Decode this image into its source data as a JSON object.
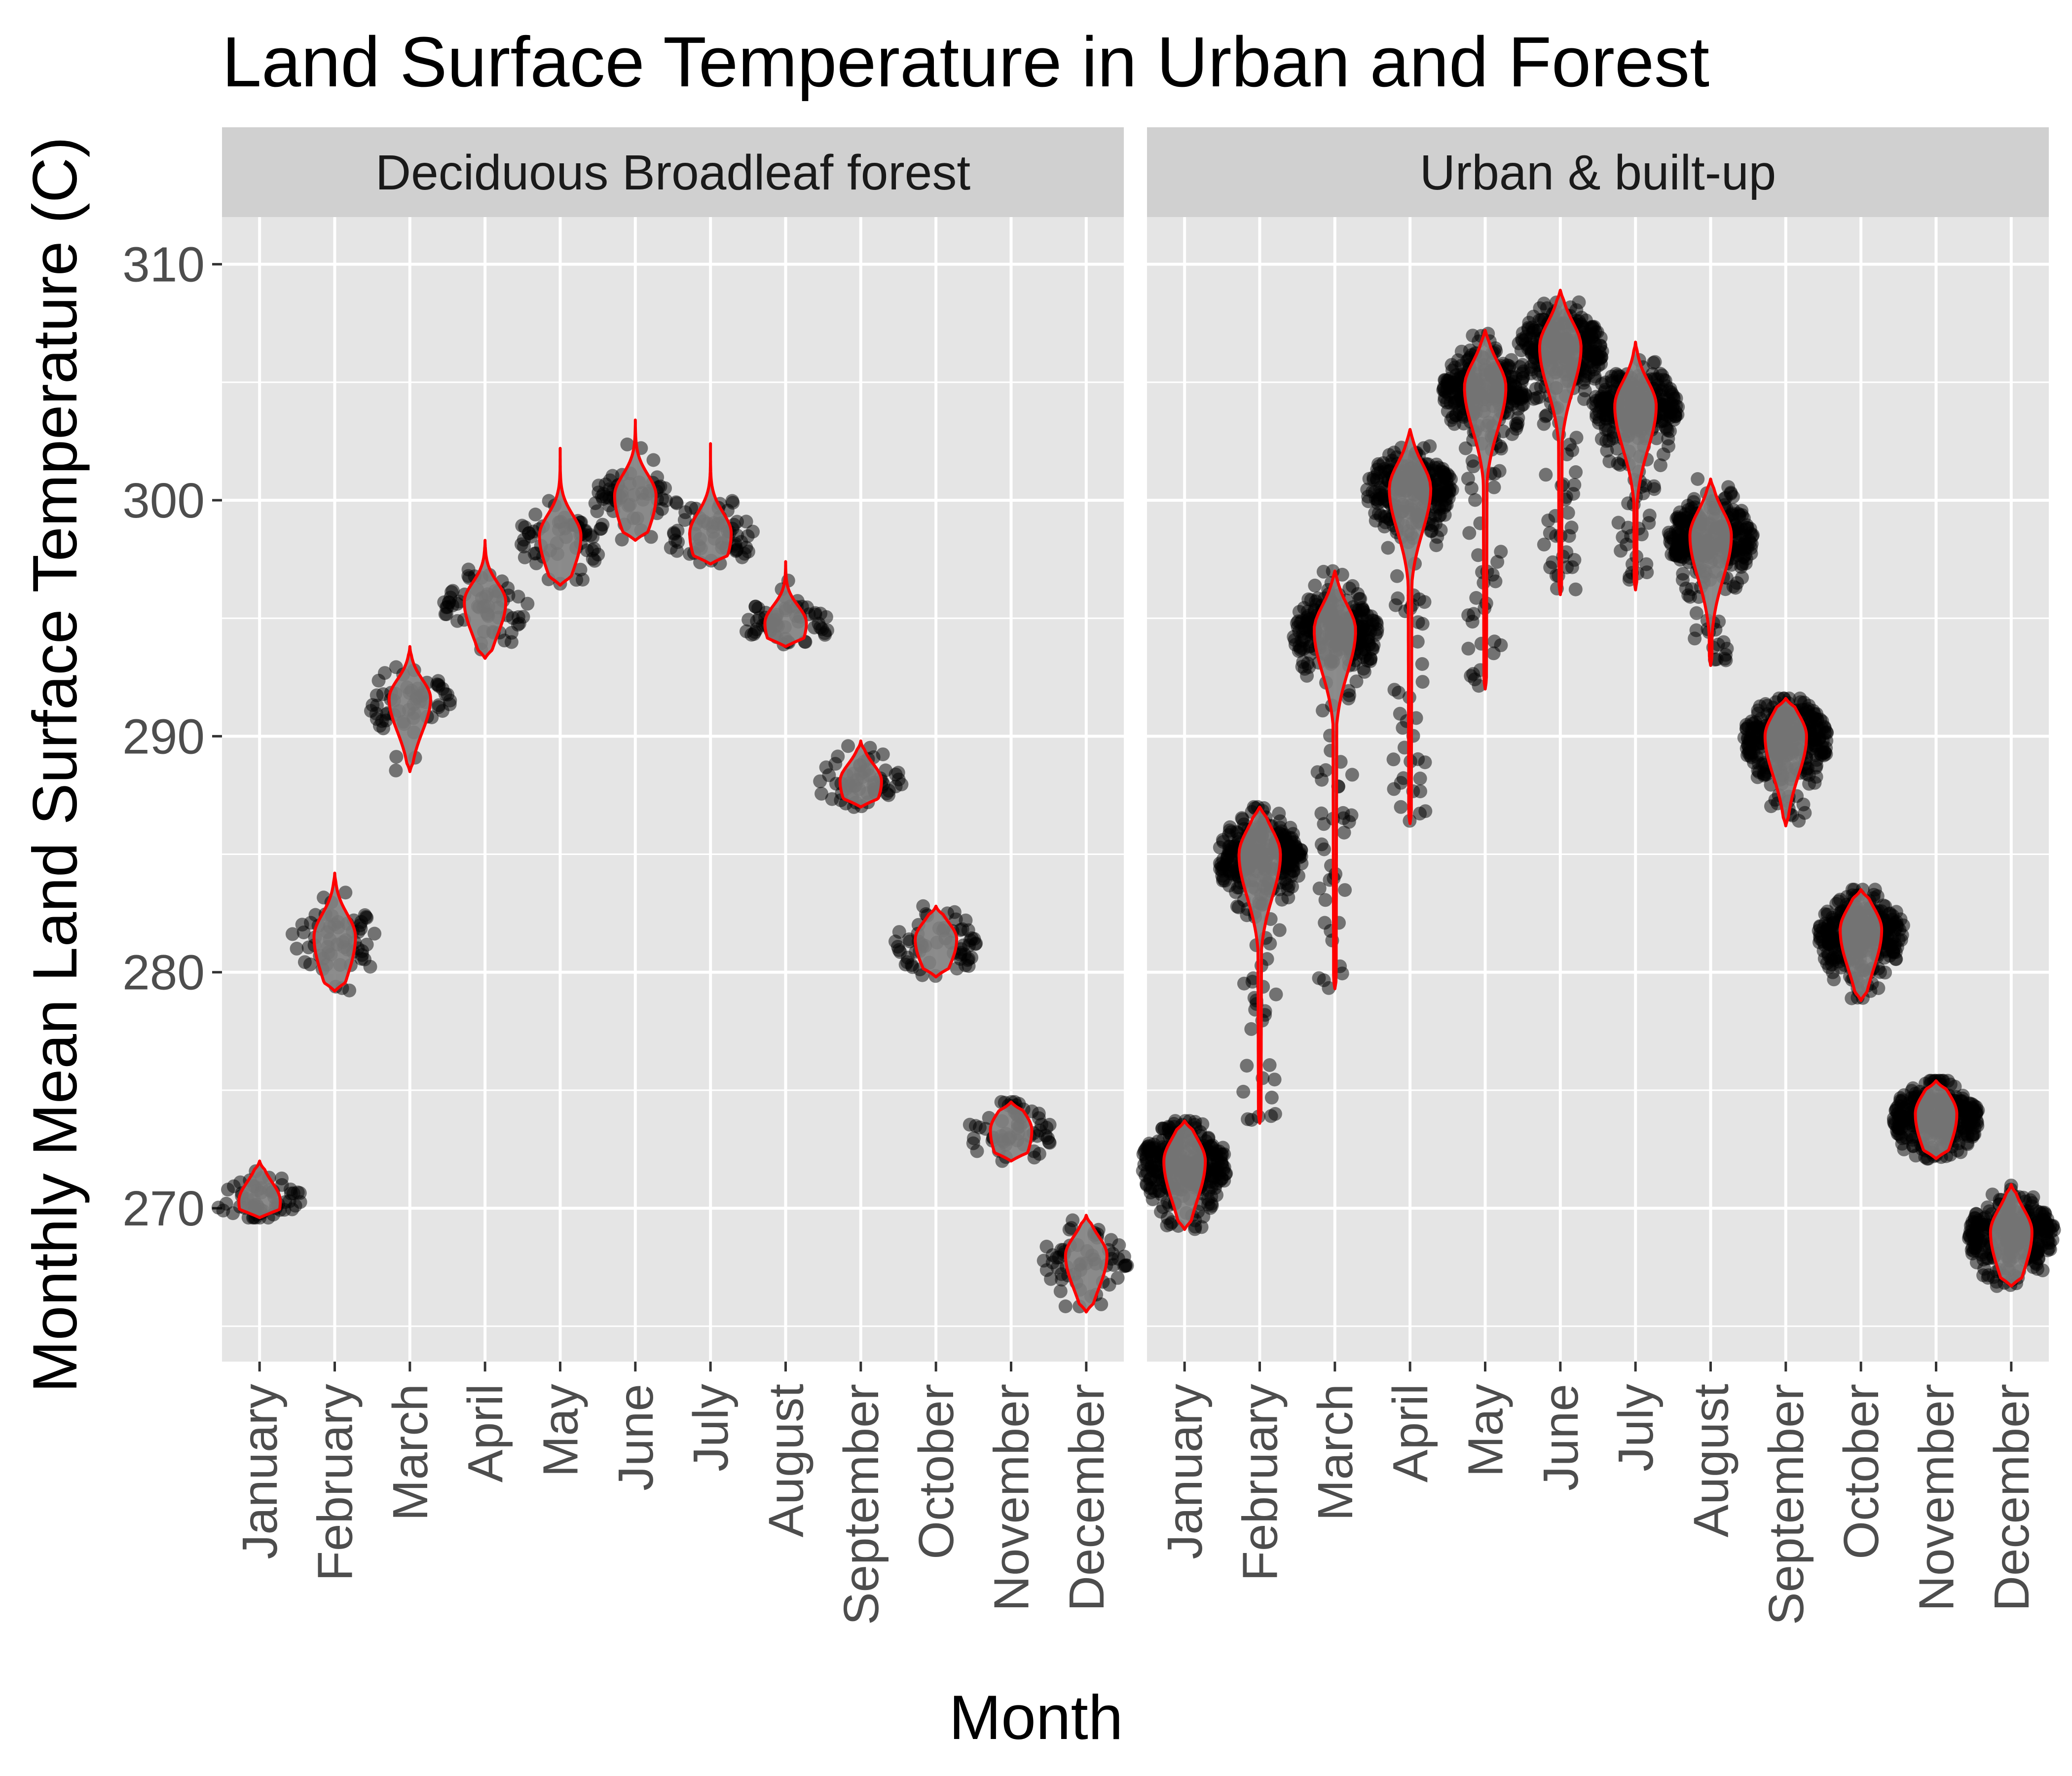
{
  "chart_data": {
    "type": "violin",
    "title": "Land Surface Temperature in Urban and Forest",
    "xlabel": "Month",
    "ylabel": "Monthly Mean Land Surface Temperature (C)",
    "categories": [
      "January",
      "February",
      "March",
      "April",
      "May",
      "June",
      "July",
      "August",
      "September",
      "October",
      "November",
      "December"
    ],
    "ylim": [
      263.5,
      312
    ],
    "yticks": [
      270,
      280,
      290,
      300,
      310
    ],
    "yticks_labels": [
      "270",
      "280",
      "290",
      "300",
      "310"
    ],
    "grid": true,
    "overlays": [
      "jittered points",
      "violin outline"
    ],
    "colors": {
      "panel_bg": "#e5e5e5",
      "grid": "#ffffff",
      "strip_bg": "#d0d0d0",
      "points": "#000000",
      "violin_fill": "#808080",
      "violin_line": "#ff0000"
    },
    "panels": [
      {
        "name": "Deciduous Broadleaf forest",
        "series": [
          {
            "month": "January",
            "min": 269.6,
            "max": 272.0,
            "mode": 270.3,
            "spread": 1.0,
            "npts": 60
          },
          {
            "month": "February",
            "min": 279.2,
            "max": 284.2,
            "mode": 281.5,
            "spread": 1.2,
            "npts": 60
          },
          {
            "month": "March",
            "min": 288.5,
            "max": 293.8,
            "mode": 291.6,
            "spread": 1.0,
            "npts": 60
          },
          {
            "month": "April",
            "min": 293.3,
            "max": 298.3,
            "mode": 295.7,
            "spread": 1.0,
            "npts": 60
          },
          {
            "month": "May",
            "min": 296.4,
            "max": 302.2,
            "mode": 298.5,
            "spread": 1.1,
            "npts": 60
          },
          {
            "month": "June",
            "min": 298.3,
            "max": 303.4,
            "mode": 300.2,
            "spread": 1.1,
            "npts": 60
          },
          {
            "month": "July",
            "min": 297.3,
            "max": 302.4,
            "mode": 298.6,
            "spread": 1.1,
            "npts": 60
          },
          {
            "month": "August",
            "min": 293.8,
            "max": 297.4,
            "mode": 294.8,
            "spread": 0.9,
            "npts": 60
          },
          {
            "month": "September",
            "min": 287.0,
            "max": 289.8,
            "mode": 288.1,
            "spread": 0.9,
            "npts": 60
          },
          {
            "month": "October",
            "min": 279.8,
            "max": 282.8,
            "mode": 281.4,
            "spread": 0.9,
            "npts": 60
          },
          {
            "month": "November",
            "min": 272.0,
            "max": 274.5,
            "mode": 273.3,
            "spread": 1.0,
            "npts": 60
          },
          {
            "month": "December",
            "min": 265.6,
            "max": 269.7,
            "mode": 268.0,
            "spread": 1.0,
            "npts": 60
          }
        ]
      },
      {
        "name": "Urban & built-up",
        "series": [
          {
            "month": "January",
            "min": 269.1,
            "max": 273.7,
            "mode": 272.0,
            "spread": 1.2,
            "npts": 300
          },
          {
            "month": "February",
            "min": 273.6,
            "max": 287.0,
            "mode": 285.0,
            "spread": 1.3,
            "npts": 300
          },
          {
            "month": "March",
            "min": 279.3,
            "max": 297.0,
            "mode": 294.5,
            "spread": 1.3,
            "npts": 300
          },
          {
            "month": "April",
            "min": 286.3,
            "max": 303.0,
            "mode": 300.5,
            "spread": 1.3,
            "npts": 300
          },
          {
            "month": "May",
            "min": 292.0,
            "max": 307.2,
            "mode": 304.8,
            "spread": 1.3,
            "npts": 300
          },
          {
            "month": "June",
            "min": 296.0,
            "max": 308.9,
            "mode": 306.5,
            "spread": 1.3,
            "npts": 300
          },
          {
            "month": "July",
            "min": 296.2,
            "max": 306.7,
            "mode": 304.0,
            "spread": 1.3,
            "npts": 300
          },
          {
            "month": "August",
            "min": 293.0,
            "max": 300.9,
            "mode": 298.5,
            "spread": 1.3,
            "npts": 300
          },
          {
            "month": "September",
            "min": 286.2,
            "max": 291.6,
            "mode": 290.0,
            "spread": 1.2,
            "npts": 300
          },
          {
            "month": "October",
            "min": 278.8,
            "max": 283.5,
            "mode": 281.8,
            "spread": 1.2,
            "npts": 300
          },
          {
            "month": "November",
            "min": 272.1,
            "max": 275.4,
            "mode": 274.0,
            "spread": 1.1,
            "npts": 300
          },
          {
            "month": "December",
            "min": 266.7,
            "max": 271.0,
            "mode": 269.0,
            "spread": 1.2,
            "npts": 300
          }
        ]
      }
    ]
  }
}
